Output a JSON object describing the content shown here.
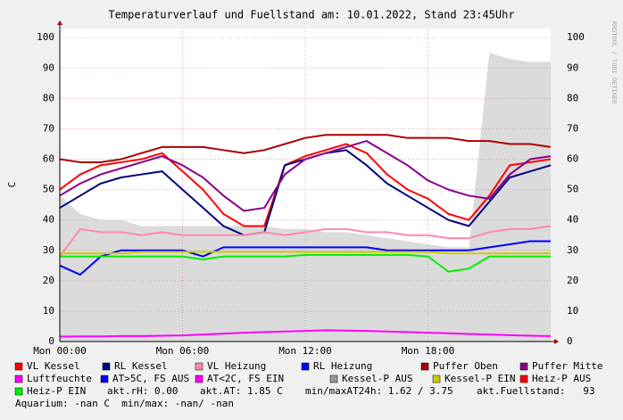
{
  "chart_data": {
    "type": "line",
    "title": "Temperaturverlauf und Fuellstand am: 10.01.2022, Stand 23:45Uhr",
    "y_label": "C",
    "watermark": "RRDTOOL / TOBI OETIKER",
    "x": [
      0,
      1,
      2,
      3,
      4,
      5,
      6,
      7,
      8,
      9,
      10,
      11,
      12,
      13,
      14,
      15,
      16,
      17,
      18,
      19,
      20,
      21,
      22,
      23,
      24
    ],
    "xlim": [
      0,
      24
    ],
    "xticks": [
      {
        "value": 0,
        "label": "Mon 00:00"
      },
      {
        "value": 6,
        "label": "Mon 06:00"
      },
      {
        "value": 12,
        "label": "Mon 12:00"
      },
      {
        "value": 18,
        "label": "Mon 18:00"
      }
    ],
    "ylim": [
      0,
      103
    ],
    "yticks": [
      0,
      10,
      20,
      30,
      40,
      50,
      60,
      70,
      80,
      90,
      100
    ],
    "grid": true,
    "series": [
      {
        "name": "VL Kessel",
        "color": "#ff0000",
        "values": [
          50,
          55,
          58,
          59,
          60,
          62,
          56,
          50,
          42,
          38,
          38,
          58,
          61,
          63,
          65,
          62,
          55,
          50,
          47,
          42,
          40,
          48,
          58,
          59,
          60
        ]
      },
      {
        "name": "RL Kessel",
        "color": "#000080",
        "values": [
          44,
          48,
          52,
          54,
          55,
          56,
          50,
          44,
          38,
          35,
          36,
          58,
          60,
          62,
          63,
          58,
          52,
          48,
          44,
          40,
          38,
          46,
          54,
          56,
          58
        ]
      },
      {
        "name": "VL Heizung",
        "color": "#ff88aa",
        "values": [
          28,
          37,
          36,
          36,
          35,
          36,
          35,
          35,
          35,
          35,
          36,
          35,
          36,
          37,
          37,
          36,
          36,
          35,
          35,
          34,
          34,
          36,
          37,
          37,
          38
        ]
      },
      {
        "name": "RL Heizung",
        "color": "#0000ff",
        "values": [
          25,
          22,
          28,
          30,
          30,
          30,
          30,
          28,
          31,
          31,
          31,
          31,
          31,
          31,
          31,
          31,
          30,
          30,
          30,
          30,
          30,
          31,
          32,
          33,
          33
        ]
      },
      {
        "name": "Puffer Oben",
        "color": "#aa0000",
        "values": [
          60,
          59,
          59,
          60,
          62,
          64,
          64,
          64,
          63,
          62,
          63,
          65,
          67,
          68,
          68,
          68,
          68,
          67,
          67,
          67,
          66,
          66,
          65,
          65,
          64
        ]
      },
      {
        "name": "Puffer Mitte",
        "color": "#880088",
        "values": [
          48,
          52,
          55,
          57,
          59,
          61,
          58,
          54,
          48,
          43,
          44,
          55,
          60,
          62,
          64,
          66,
          62,
          58,
          53,
          50,
          48,
          47,
          55,
          60,
          61
        ]
      },
      {
        "name": "Luftfeuchte",
        "color": "#ff00ff",
        "values": [
          1.6,
          1.7,
          1.7,
          1.8,
          1.8,
          1.9,
          2,
          2.3,
          2.6,
          2.9,
          3.1,
          3.3,
          3.5,
          3.7,
          3.6,
          3.5,
          3.3,
          3.1,
          2.9,
          2.7,
          2.5,
          2.3,
          2.1,
          1.9,
          1.8
        ]
      },
      {
        "name": "AT>5C, FS AUS",
        "color": "#0000ff",
        "values": [
          null,
          null,
          null,
          null,
          null,
          null,
          null,
          null,
          null,
          null,
          null,
          null,
          null,
          null,
          null,
          null,
          null,
          null,
          null,
          null,
          null,
          null,
          null,
          null,
          null
        ]
      },
      {
        "name": "AT<2C, FS EIN",
        "color": "#ff00ff",
        "values": [
          null,
          null,
          null,
          null,
          null,
          null,
          null,
          null,
          null,
          null,
          null,
          null,
          null,
          null,
          null,
          null,
          null,
          null,
          null,
          null,
          null,
          null,
          null,
          null,
          null
        ]
      },
      {
        "name": "Kessel-P AUS",
        "color": "#999999",
        "area": true,
        "values": [
          48,
          42,
          40,
          40,
          38,
          38,
          38,
          38,
          38,
          38,
          38,
          37,
          37,
          36,
          36,
          35,
          34,
          33,
          32,
          31,
          31,
          95,
          93,
          92,
          92
        ]
      },
      {
        "name": "Kessel-P EIN",
        "color": "#cccc00",
        "values": [
          29,
          29,
          29,
          29,
          29.5,
          29.5,
          29.5,
          29.5,
          29.5,
          29.5,
          29.5,
          29.5,
          29.5,
          29.5,
          29.5,
          29.5,
          29.5,
          29.5,
          29.5,
          29,
          29,
          29,
          29,
          29,
          29
        ]
      },
      {
        "name": "Heiz-P AUS",
        "color": "#ff0000",
        "values": [
          null,
          null,
          null,
          null,
          null,
          null,
          null,
          null,
          null,
          null,
          null,
          null,
          null,
          null,
          null,
          null,
          null,
          null,
          null,
          null,
          null,
          null,
          null,
          null,
          null
        ]
      },
      {
        "name": "Heiz-P EIN",
        "color": "#00ee00",
        "values": [
          28,
          28,
          28,
          28,
          28,
          28,
          28,
          27,
          28,
          28,
          28,
          28,
          28.5,
          28.5,
          28.5,
          28.5,
          28.5,
          28.5,
          28,
          23,
          24,
          28,
          28,
          28,
          28
        ]
      }
    ],
    "status": [
      "akt.rH: 0.00",
      "akt.AT: 1.85 C",
      "min/maxAT24h: 1.62 / 3.75",
      "akt.Fuellstand:   93",
      "Aquarium: -nan C  min/max: -nan/ -nan"
    ]
  }
}
